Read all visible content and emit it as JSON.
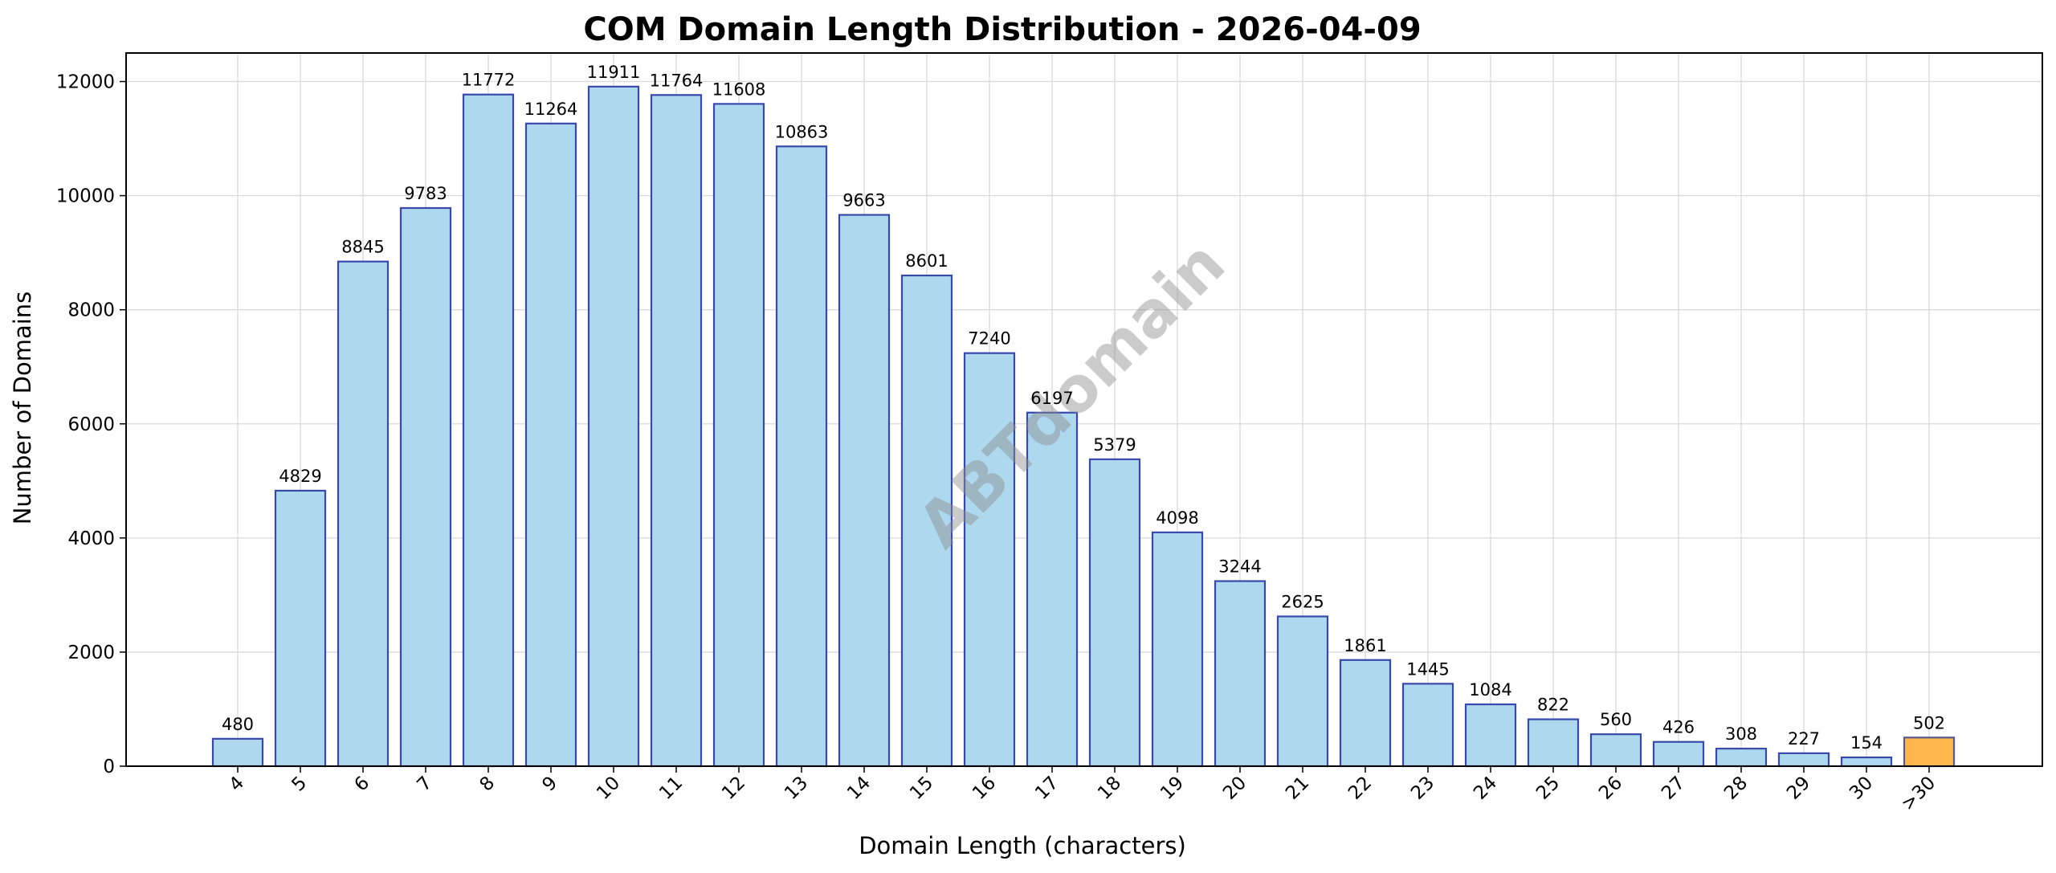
{
  "chart_data": {
    "type": "bar",
    "title": "COM Domain Length Distribution - 2026-04-09",
    "xlabel": "Domain Length (characters)",
    "ylabel": "Number of Domains",
    "categories": [
      "4",
      "5",
      "6",
      "7",
      "8",
      "9",
      "10",
      "11",
      "12",
      "13",
      "14",
      "15",
      "16",
      "17",
      "18",
      "19",
      "20",
      "21",
      "22",
      "23",
      "24",
      "25",
      "26",
      "27",
      "28",
      "29",
      "30",
      ">30"
    ],
    "values": [
      480,
      4829,
      8845,
      9783,
      11772,
      11264,
      11911,
      11764,
      11608,
      10863,
      9663,
      8601,
      7240,
      6197,
      5379,
      4098,
      3244,
      2625,
      1861,
      1445,
      1084,
      822,
      560,
      426,
      308,
      227,
      154,
      502
    ],
    "ylim": [
      0,
      12500
    ],
    "yticks": [
      0,
      2000,
      4000,
      6000,
      8000,
      10000,
      12000
    ],
    "grid": true,
    "watermark": "ABTdomain",
    "colors": {
      "bar_fill": "#add8ee",
      "bar_edge": "#3949ab",
      "highlight_fill": "#ffb74d",
      "highlight_edge": "#5a5a8a",
      "grid": "#d9d9d9"
    },
    "highlight_categories": [
      ">30"
    ]
  }
}
